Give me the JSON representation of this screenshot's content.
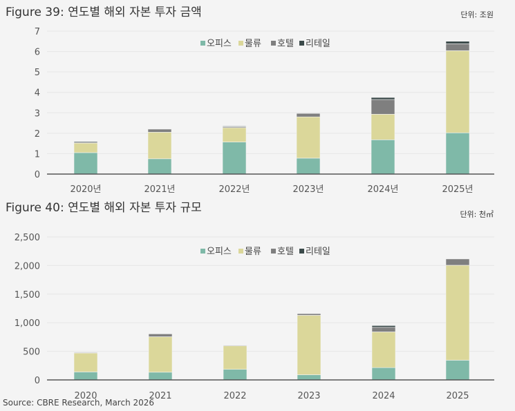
{
  "colors": {
    "오피스": "#7fb9a8",
    "물류": "#dbd79a",
    "호텔": "#7f7f7f",
    "리테일": "#3b4a4a",
    "axis": "#555555",
    "grid": "#e6e6e6"
  },
  "source": "Source: CBRE Research, March 2026",
  "chart_data": [
    {
      "type": "bar",
      "stacked": true,
      "title": "Figure 39: 연도별 해외 자본 투자 금액",
      "unit": "단위: 조원",
      "categories": [
        "2020년",
        "2021년",
        "2022년",
        "2023년",
        "2024년",
        "2025년"
      ],
      "ylim": [
        0,
        7
      ],
      "yticks": [
        "0",
        "1",
        "2",
        "3",
        "4",
        "5",
        "6",
        "7"
      ],
      "ytick_values": [
        0,
        1,
        2,
        3,
        4,
        5,
        6,
        7
      ],
      "grid": true,
      "legend": "top-center",
      "series": [
        {
          "name": "오피스",
          "values": [
            1.05,
            0.75,
            1.57,
            0.78,
            1.68,
            2.02
          ]
        },
        {
          "name": "물류",
          "values": [
            0.47,
            1.3,
            0.7,
            2.02,
            1.25,
            4.02
          ]
        },
        {
          "name": "호텔",
          "values": [
            0.04,
            0.15,
            0.05,
            0.17,
            0.72,
            0.34
          ]
        },
        {
          "name": "리테일",
          "values": [
            0.04,
            0.0,
            0.03,
            0.01,
            0.1,
            0.12
          ]
        }
      ]
    },
    {
      "type": "bar",
      "stacked": true,
      "title": "Figure 40: 연도별 해외 자본 투자 규모",
      "unit": "단위: 천㎡",
      "categories": [
        "2020",
        "2021",
        "2022",
        "2023",
        "2024",
        "2025"
      ],
      "ylim": [
        0,
        2500
      ],
      "yticks": [
        "0",
        "500",
        "1,000",
        "1,500",
        "2,000",
        "2,500"
      ],
      "ytick_values": [
        0,
        500,
        1000,
        1500,
        2000,
        2500
      ],
      "grid": true,
      "legend": "top-center",
      "series": [
        {
          "name": "오피스",
          "values": [
            140,
            135,
            185,
            90,
            215,
            345
          ]
        },
        {
          "name": "물류",
          "values": [
            330,
            620,
            410,
            1040,
            625,
            1660
          ]
        },
        {
          "name": "호텔",
          "values": [
            10,
            50,
            10,
            30,
            80,
            110
          ]
        },
        {
          "name": "리테일",
          "values": [
            0,
            0,
            0,
            3,
            30,
            0
          ]
        }
      ]
    }
  ]
}
